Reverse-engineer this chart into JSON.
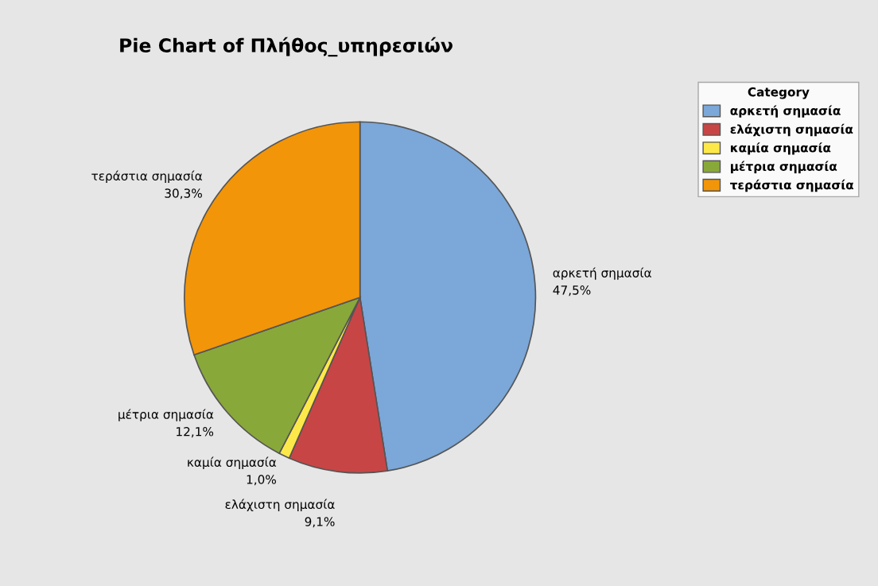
{
  "chart_data": {
    "type": "pie",
    "title": "Pie Chart of Πλήθος_υπηρεσιών",
    "categories": [
      "αρκετή σημασία",
      "ελάχιστη σημασία",
      "καμία σημασία",
      "μέτρια σημασία",
      "τεράστια σημασία"
    ],
    "values": [
      47.5,
      9.1,
      1.0,
      12.1,
      30.3
    ],
    "colors": [
      "#7ba7d9",
      "#c84545",
      "#fde84a",
      "#89a83a",
      "#f39508"
    ],
    "value_labels": [
      "47,5%",
      "9,1%",
      "1,0%",
      "12,1%",
      "30,3%"
    ],
    "legend_title": "Category",
    "legend": "top right"
  }
}
